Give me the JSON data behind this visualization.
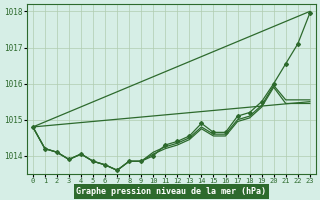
{
  "title": "Graphe pression niveau de la mer (hPa)",
  "x_labels": [
    "0",
    "1",
    "2",
    "3",
    "4",
    "5",
    "6",
    "7",
    "8",
    "9",
    "10",
    "11",
    "12",
    "13",
    "14",
    "15",
    "16",
    "17",
    "18",
    "19",
    "20",
    "21",
    "22",
    "23"
  ],
  "x_values": [
    0,
    1,
    2,
    3,
    4,
    5,
    6,
    7,
    8,
    9,
    10,
    11,
    12,
    13,
    14,
    15,
    16,
    17,
    18,
    19,
    20,
    21,
    22,
    23
  ],
  "line1": [
    1014.8,
    1014.2,
    1014.1,
    1013.9,
    1014.05,
    1013.85,
    1013.75,
    1013.6,
    1013.85,
    1013.85,
    1014.0,
    1014.3,
    1014.4,
    1014.55,
    1014.9,
    1014.65,
    1014.65,
    1015.1,
    1015.2,
    1015.5,
    1016.0,
    1016.55,
    1017.1,
    1017.95
  ],
  "line2": [
    1014.8,
    1014.2,
    1014.1,
    1013.9,
    1014.05,
    1013.85,
    1013.75,
    1013.6,
    1013.85,
    1013.85,
    1014.1,
    1014.25,
    1014.35,
    1014.5,
    1014.8,
    1014.6,
    1014.6,
    1015.0,
    1015.1,
    1015.4,
    1015.95,
    1015.55,
    1015.55,
    1015.55
  ],
  "line3": [
    1014.8,
    1014.2,
    1014.1,
    1013.9,
    1014.05,
    1013.85,
    1013.75,
    1013.6,
    1013.85,
    1013.85,
    1014.05,
    1014.2,
    1014.3,
    1014.45,
    1014.75,
    1014.55,
    1014.55,
    1014.95,
    1015.05,
    1015.35,
    1015.9,
    1015.45,
    1015.45,
    1015.45
  ],
  "line_color": "#2d6a2d",
  "bg_color": "#d6eee6",
  "grid_color": "#b0ccb0",
  "ylim": [
    1013.5,
    1018.2
  ],
  "yticks": [
    1014,
    1015,
    1016,
    1017,
    1018
  ],
  "title_color": "#2d6a2d",
  "title_bg": "#2d6a2d",
  "title_text_color": "#ffffff"
}
